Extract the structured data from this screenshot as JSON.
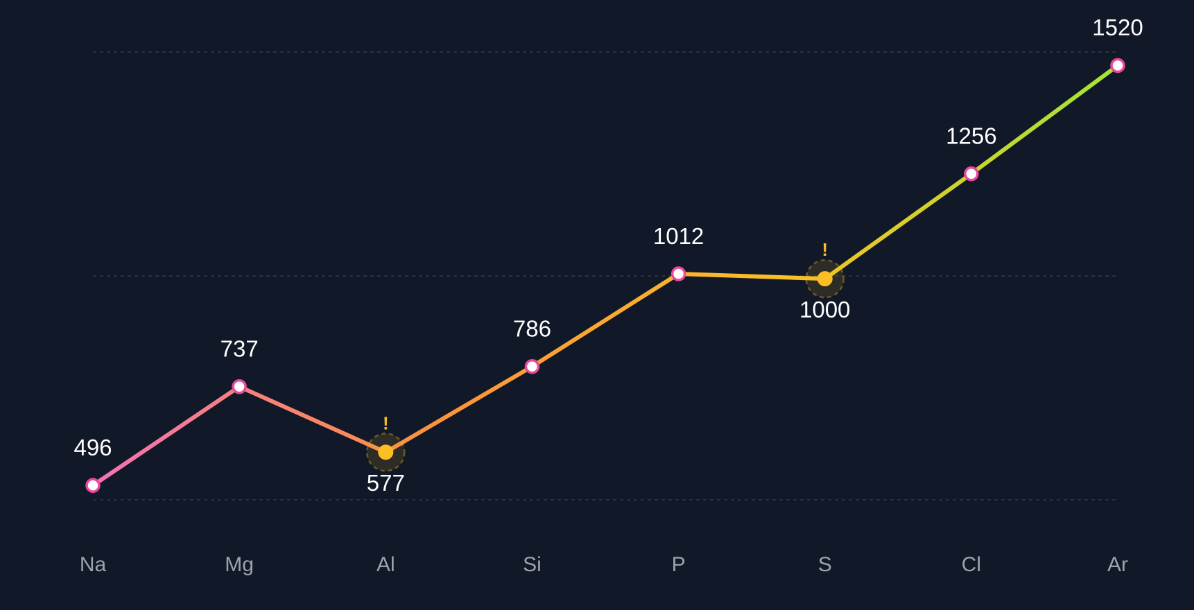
{
  "chart_data": {
    "type": "line",
    "categories": [
      "Na",
      "Mg",
      "Al",
      "Si",
      "P",
      "S",
      "Cl",
      "Ar"
    ],
    "values": [
      496,
      737,
      577,
      786,
      1012,
      1000,
      1256,
      1520
    ],
    "gradient": [
      "#f472b6",
      "#fb923c",
      "#fbbf24",
      "#a3e635"
    ],
    "point_stroke": "#ec4899",
    "highlight_color": "#fbbf24",
    "anomaly_mark": "!",
    "ylim": [
      461,
      1553
    ],
    "yticks": [
      461,
      1007,
      1553
    ],
    "grid": true
  }
}
